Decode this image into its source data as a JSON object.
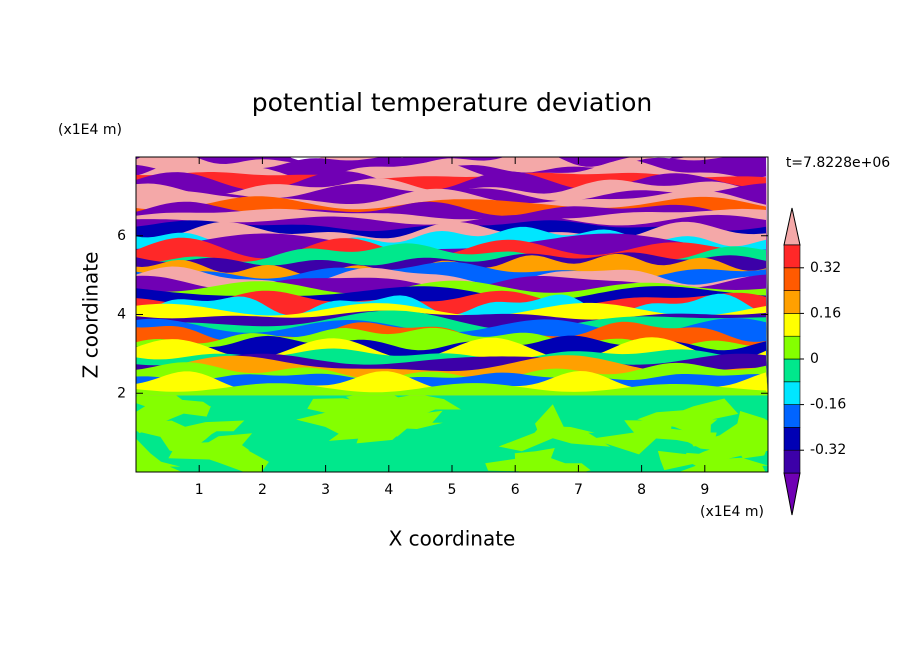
{
  "chart_data": {
    "type": "contour",
    "title": "potential temperature deviation",
    "xlabel": "X coordinate",
    "ylabel": "Z coordinate",
    "x_unit": "(x1E4 m)",
    "y_unit": "(x1E4 m)",
    "time_label": "t=7.8228e+06",
    "xlim": [
      0,
      10
    ],
    "ylim": [
      0,
      8
    ],
    "xticks": [
      1,
      2,
      3,
      4,
      5,
      6,
      7,
      8,
      9
    ],
    "yticks": [
      2,
      4,
      6
    ],
    "levels": [
      -0.4,
      -0.32,
      -0.24,
      -0.16,
      -0.08,
      0,
      0.08,
      0.16,
      0.24,
      0.32,
      0.4
    ],
    "level_ticks": [
      0.32,
      0.16,
      0,
      -0.16,
      -0.32
    ],
    "colors": [
      "#7000b4",
      "#3c00a8",
      "#0000b4",
      "#0064ff",
      "#00e6ff",
      "#00e88c",
      "#84ff00",
      "#ffff00",
      "#ffa000",
      "#ff5a00",
      "#ff2828",
      "#f4a8a8"
    ]
  }
}
